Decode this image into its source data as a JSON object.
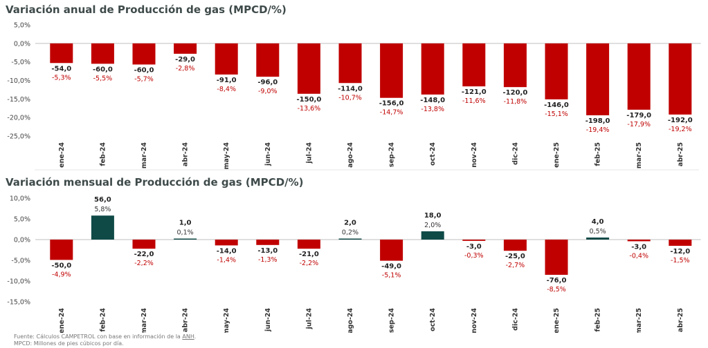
{
  "chart_data": [
    {
      "type": "bar",
      "title": "Variación anual de Producción de gas (MPCD/%)",
      "categories": [
        "ene-24",
        "feb-24",
        "mar-24",
        "abr-24",
        "may-24",
        "jun-24",
        "jul-24",
        "ago-24",
        "sep-24",
        "oct-24",
        "nov-24",
        "dic-24",
        "ene-25",
        "feb-25",
        "mar-25",
        "abr-25"
      ],
      "values": [
        -5.3,
        -5.5,
        -5.7,
        -2.8,
        -8.4,
        -9.0,
        -13.6,
        -10.7,
        -14.7,
        -13.8,
        -11.6,
        -11.8,
        -15.1,
        -19.4,
        -17.9,
        -19.2
      ],
      "value_labels": [
        "-54,0",
        "-60,0",
        "-60,0",
        "-29,0",
        "-91,0",
        "-96,0",
        "-150,0",
        "-114,0",
        "-156,0",
        "-148,0",
        "-121,0",
        "-120,0",
        "-146,0",
        "-198,0",
        "-179,0",
        "-192,0"
      ],
      "pct_labels": [
        "-5,3%",
        "-5,5%",
        "-5,7%",
        "-2,8%",
        "-8,4%",
        "-9,0%",
        "-13,6%",
        "-10,7%",
        "-14,7%",
        "-13,8%",
        "-11,6%",
        "-11,8%",
        "-15,1%",
        "-19,4%",
        "-17,9%",
        "-19,2%"
      ],
      "ylim": [
        -25,
        5
      ],
      "yticks": [
        5,
        0,
        -5,
        -10,
        -15,
        -20,
        -25
      ],
      "ytick_labels": [
        "5,0%",
        "0,0%",
        "-5,0%",
        "-10,0%",
        "-15,0%",
        "-20,0%",
        "-25,0%"
      ],
      "grid": false,
      "colors": {
        "negative": "#c00000",
        "positive": "#0f4a47"
      }
    },
    {
      "type": "bar",
      "title": "Variación mensual de Producción de gas (MPCD/%)",
      "categories": [
        "ene-24",
        "feb-24",
        "mar-24",
        "abr-24",
        "may-24",
        "jun-24",
        "jul-24",
        "ago-24",
        "sep-24",
        "oct-24",
        "nov-24",
        "dic-24",
        "ene-25",
        "feb-25",
        "mar-25",
        "abr-25"
      ],
      "values": [
        -4.9,
        5.8,
        -2.2,
        0.1,
        -1.4,
        -1.3,
        -2.2,
        0.2,
        -5.1,
        2.0,
        -0.3,
        -2.7,
        -8.5,
        0.5,
        -0.4,
        -1.5
      ],
      "value_labels": [
        "-50,0",
        "56,0",
        "-22,0",
        "1,0",
        "-14,0",
        "-13,0",
        "-21,0",
        "2,0",
        "-49,0",
        "18,0",
        "-3,0",
        "-25,0",
        "-76,0",
        "4,0",
        "-3,0",
        "-12,0"
      ],
      "pct_labels": [
        "-4,9%",
        "5,8%",
        "-2,2%",
        "0,1%",
        "-1,4%",
        "-1,3%",
        "-2,2%",
        "0,2%",
        "-5,1%",
        "2,0%",
        "-0,3%",
        "-2,7%",
        "-8,5%",
        "0,5%",
        "-0,4%",
        "-1,5%"
      ],
      "ylim": [
        -15,
        10
      ],
      "yticks": [
        10,
        5,
        0,
        -5,
        -10,
        -15
      ],
      "ytick_labels": [
        "10,0%",
        "5,0%",
        "0,0%",
        "-5,0%",
        "-10,0%",
        "-15,0%"
      ],
      "grid": false,
      "colors": {
        "negative": "#c00000",
        "positive": "#0f4a47"
      }
    }
  ],
  "footnotes": {
    "source_prefix": "Fuente: Cálculos CAMPETROL con base en información de la ",
    "source_link": "ANH",
    "source_suffix": ".",
    "mpcd": "MPCD: Millones de pies cúbicos por día."
  }
}
